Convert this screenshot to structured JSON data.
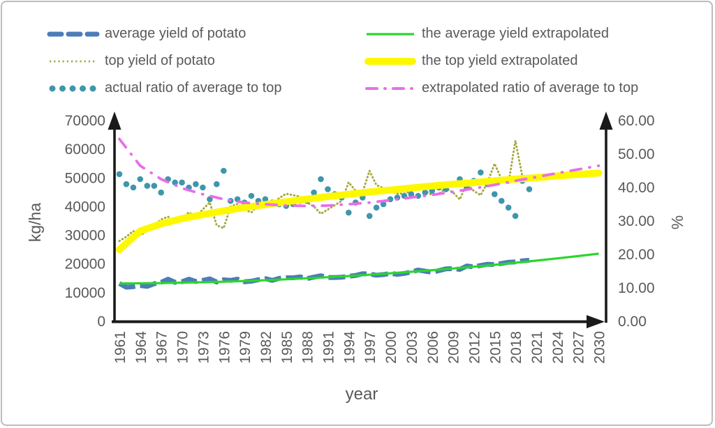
{
  "figure": {
    "background": "#ffffff",
    "border_color": "#bcbcbc",
    "text_color": "#595959",
    "axis_color": "#1a1a1a"
  },
  "legend": {
    "items_left": [
      {
        "label": "average yield of potato",
        "marker": "thick-dashed-line",
        "color": "#4d7cba"
      },
      {
        "label": "top yield of potato",
        "marker": "dotted-line",
        "color": "#a6a93c"
      },
      {
        "label": "actual ratio of average to top",
        "marker": "round-dots",
        "color": "#3e96ad"
      }
    ],
    "items_right": [
      {
        "label": "the average yield extrapolated",
        "marker": "solid-line",
        "color": "#2bd62b"
      },
      {
        "label": "the top yield extrapolated",
        "marker": "thick-solid-line",
        "color": "#fdf800"
      },
      {
        "label": "extrapolated ratio of average to top",
        "marker": "dash-dot-line",
        "color": "#e86ee8"
      }
    ]
  },
  "chart_data": {
    "type": "line",
    "x_axis": {
      "label": "year",
      "range": [
        1961,
        2030
      ],
      "tick_years": [
        1961,
        1964,
        1967,
        1970,
        1973,
        1976,
        1979,
        1982,
        1985,
        1988,
        1991,
        1994,
        1997,
        2000,
        2003,
        2006,
        2009,
        2012,
        2015,
        2018,
        2021,
        2024,
        2027,
        2030
      ]
    },
    "y_axis_left": {
      "label": "kg/ha",
      "range": [
        0,
        70000
      ],
      "ticks": [
        0,
        10000,
        20000,
        30000,
        40000,
        50000,
        60000,
        70000
      ]
    },
    "y_axis_right": {
      "label": "%",
      "range": [
        0,
        60
      ],
      "tick_labels": [
        "0.00",
        "10.00",
        "20.00",
        "30.00",
        "40.00",
        "50.00",
        "60.00"
      ]
    },
    "grid": false,
    "legend_position": "top",
    "series": [
      {
        "name": "average yield of potato",
        "axis": "left",
        "type": "line",
        "style": "thick-dashed",
        "color": "#4d7cba",
        "start_year": 1961,
        "step": 1,
        "values": [
          13200,
          11900,
          12100,
          12500,
          12200,
          13100,
          13600,
          14700,
          13600,
          13800,
          14700,
          13900,
          14300,
          14800,
          13700,
          14500,
          14300,
          14700,
          13800,
          14000,
          14500,
          14900,
          14300,
          15000,
          15200,
          15200,
          15500,
          14900,
          15400,
          15900,
          15300,
          15300,
          15400,
          15700,
          16000,
          16600,
          16500,
          16100,
          16300,
          16700,
          16400,
          16700,
          17200,
          17900,
          17500,
          17100,
          17700,
          18300,
          18400,
          18100,
          19300,
          19000,
          19500,
          19900,
          19800,
          20200,
          20600,
          20700,
          21100,
          21300
        ]
      },
      {
        "name": "top yield of potato",
        "axis": "left",
        "type": "line",
        "style": "dotted",
        "color": "#a6a93c",
        "start_year": 1961,
        "step": 1,
        "values": [
          28000,
          29500,
          31500,
          30000,
          31500,
          33500,
          35500,
          36500,
          34500,
          36000,
          38000,
          36500,
          39000,
          41500,
          33500,
          32500,
          40000,
          41000,
          39000,
          38000,
          40500,
          42000,
          40500,
          43000,
          44500,
          44000,
          43500,
          41500,
          40000,
          37500,
          39000,
          40500,
          42000,
          48500,
          45500,
          45000,
          52500,
          47500,
          46500,
          45500,
          44500,
          44500,
          45500,
          47500,
          45500,
          44000,
          44500,
          46500,
          45000,
          42500,
          48000,
          45500,
          44000,
          48500,
          55000,
          49500,
          48000,
          63000,
          50500,
          50000
        ]
      },
      {
        "name": "actual ratio of average to top",
        "axis": "right",
        "type": "scatter",
        "style": "dots",
        "color": "#3e96ad",
        "start_year": 1961,
        "step": 1,
        "values": [
          44.0,
          41.0,
          40.0,
          42.5,
          40.5,
          40.5,
          38.5,
          42.5,
          41.5,
          41.5,
          40.0,
          41.0,
          40.0,
          36.5,
          41.0,
          45.0,
          36.0,
          36.5,
          35.5,
          37.5,
          36.0,
          36.5,
          35.5,
          35.0,
          34.5,
          35.0,
          36.0,
          36.0,
          38.5,
          42.5,
          39.5,
          38.0,
          37.0,
          32.5,
          35.5,
          37.0,
          31.5,
          34.0,
          35.0,
          36.5,
          37.0,
          37.5,
          38.0,
          37.5,
          38.5,
          39.0,
          40.0,
          39.5,
          41.0,
          42.5,
          40.0,
          42.0,
          44.5,
          41.0,
          38.0,
          36.0,
          34.0,
          31.5,
          42.0,
          39.5
        ]
      },
      {
        "name": "the average yield extrapolated",
        "axis": "left",
        "type": "line",
        "style": "solid-medium",
        "color": "#2bd62b",
        "start_year": 1961,
        "step": 3,
        "values": [
          13200,
          13260,
          13350,
          13480,
          13640,
          13840,
          14080,
          14350,
          14660,
          15010,
          15390,
          15800,
          16260,
          16740,
          17270,
          17830,
          18420,
          19060,
          19720,
          20430,
          21170,
          21940,
          22750,
          23600
        ]
      },
      {
        "name": "the top yield extrapolated",
        "axis": "left",
        "type": "line",
        "style": "solid-thick",
        "color": "#fdf800",
        "start_year": 1961,
        "step": 3,
        "values": [
          25000,
          31500,
          34000,
          35800,
          37200,
          38500,
          39700,
          40700,
          41700,
          42600,
          43500,
          44300,
          45100,
          45800,
          46500,
          47200,
          47800,
          48400,
          49000,
          49600,
          50100,
          50700,
          51200,
          51700
        ]
      },
      {
        "name": "extrapolated ratio of average to top",
        "axis": "right",
        "type": "line",
        "style": "dash-dot",
        "color": "#e86ee8",
        "start_year": 1961,
        "step": 3,
        "values": [
          54.5,
          46.5,
          42.5,
          39.8,
          38.0,
          36.5,
          35.5,
          35.0,
          34.6,
          34.5,
          34.6,
          35.0,
          35.5,
          36.2,
          37.0,
          37.8,
          38.7,
          39.7,
          40.8,
          42.0,
          43.1,
          44.3,
          45.4,
          46.5
        ]
      }
    ]
  }
}
